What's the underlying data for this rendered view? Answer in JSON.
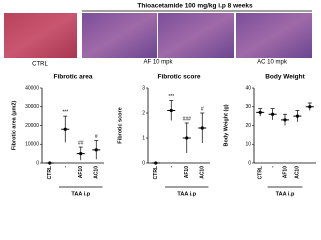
{
  "figure": {
    "title": "Thioacetamide 100 mg/kg i.p 8 weeks",
    "panels": [
      {
        "label": "CTRL"
      },
      {
        "label": "AF 10 mpk"
      },
      {
        "label": "AC 10 mpk"
      }
    ]
  },
  "chart_data": [
    {
      "type": "dot",
      "title": "Fibrotic area",
      "y_label": "Fibrotic area (μm2)",
      "categories": [
        "CTRL",
        "-",
        "AF10",
        "AC10"
      ],
      "values": [
        0,
        18000,
        5000,
        7000
      ],
      "errors": [
        0,
        7000,
        3500,
        5000
      ],
      "annotations": [
        null,
        "***",
        "##",
        "#"
      ],
      "group_label": "TAA i.p",
      "ylim": [
        0,
        40000
      ],
      "yticks": [
        0,
        10000,
        20000,
        30000,
        40000
      ],
      "color": "#000000"
    },
    {
      "type": "dot",
      "title": "Fibrotic score",
      "y_label": "Fibrotic score",
      "categories": [
        "CTRL",
        "-",
        "AF10",
        "AC10"
      ],
      "values": [
        0,
        2.1,
        1.0,
        1.4
      ],
      "errors": [
        0,
        0.4,
        0.6,
        0.6
      ],
      "annotations": [
        null,
        "***",
        "###",
        "#"
      ],
      "group_label": "TAA i.p",
      "ylim": [
        0,
        3
      ],
      "yticks": [
        0,
        1,
        2,
        3
      ],
      "color": "#000000"
    },
    {
      "type": "dot",
      "title": "Body Weight",
      "y_label": "Body Weight (g)",
      "categories": [
        "CTRL",
        "-",
        "AF10",
        "AC10",
        null
      ],
      "values": [
        27,
        26,
        23,
        25,
        30
      ],
      "errors": [
        2,
        3,
        3,
        3,
        2
      ],
      "annotations": [
        null,
        null,
        null,
        null,
        null
      ],
      "group_label": "TAA i.p",
      "ylim": [
        0,
        40
      ],
      "yticks": [
        0,
        10,
        20,
        30,
        40
      ],
      "color": "#000000"
    }
  ]
}
